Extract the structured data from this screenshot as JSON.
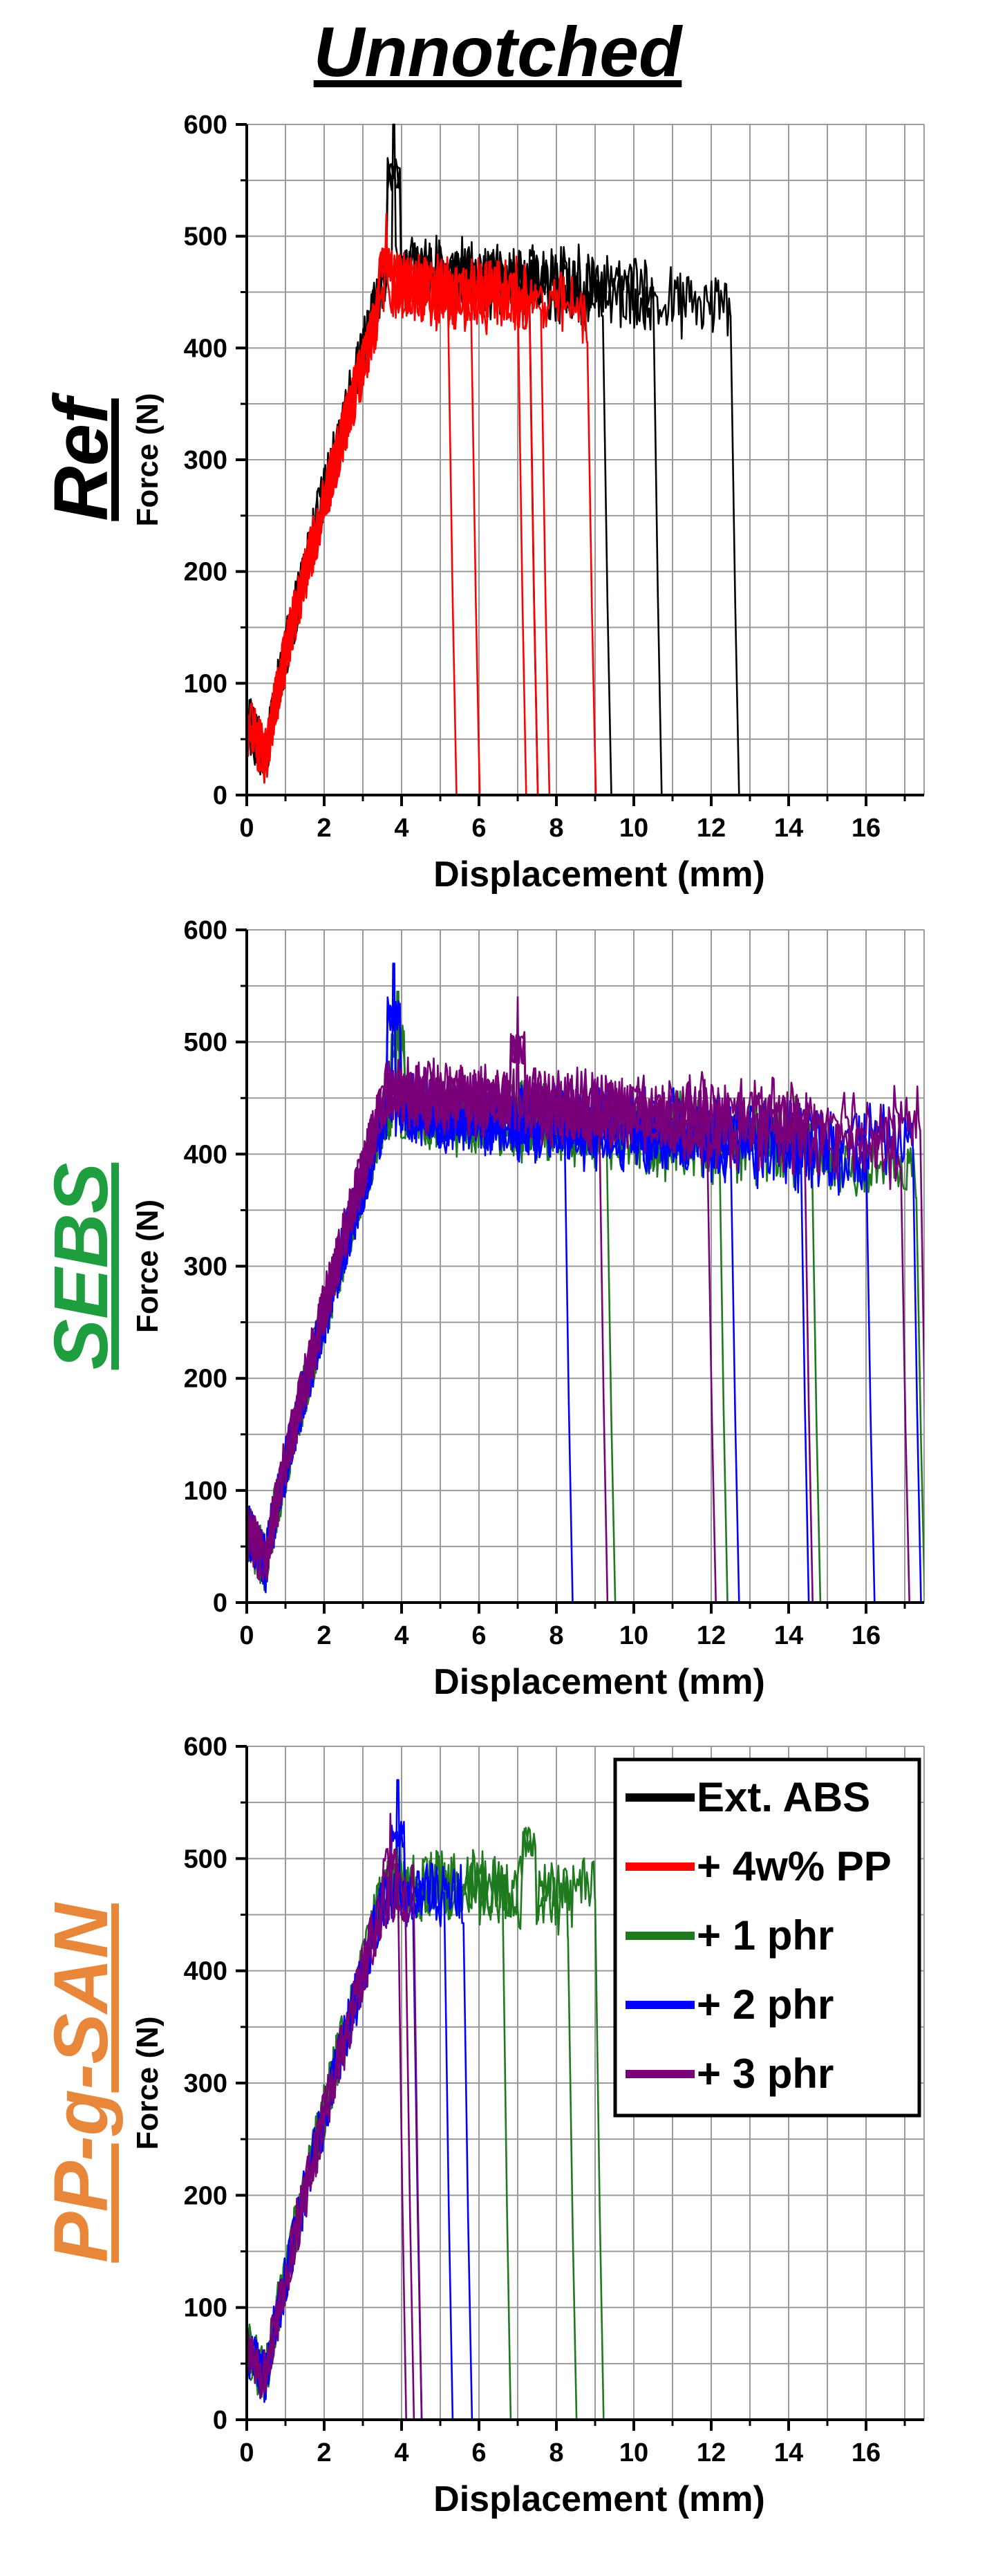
{
  "figure": {
    "title": "Unnotched"
  },
  "legend": {
    "entries": [
      {
        "label": "Ext. ABS",
        "color": "#000000"
      },
      {
        "label": "+ 4w% PP",
        "color": "#ff0000"
      },
      {
        "label": "+ 1 phr",
        "color": "#1f7a1f"
      },
      {
        "label": "+ 2 phr",
        "color": "#0000ff"
      },
      {
        "label": "+ 3 phr",
        "color": "#7a007a"
      }
    ]
  },
  "chart_data": [
    {
      "type": "line",
      "panel_label": "Ref",
      "panel_label_color": "#000000",
      "xlabel": "Displacement (mm)",
      "ylabel": "Force (N)",
      "xlim": [
        0,
        17.5
      ],
      "ylim": [
        0,
        600
      ],
      "xticks": [
        0,
        2,
        4,
        6,
        8,
        10,
        12,
        14,
        16
      ],
      "yticks": [
        0,
        100,
        200,
        300,
        400,
        500,
        600
      ],
      "grid": true,
      "series": [
        {
          "legend_ref": "Ext. ABS",
          "color": "#000000",
          "peak": 600,
          "peak_at": 3.8,
          "plateau": 470,
          "failure_x": [
            7.3,
            9.2,
            10.5,
            12.5
          ]
        },
        {
          "legend_ref": "+ 4w% PP",
          "color": "#ff0000",
          "peak": 520,
          "peak_at": 3.6,
          "plateau": 455,
          "failure_x": [
            5.2,
            5.8,
            7.0,
            7.3,
            7.6,
            8.8
          ]
        }
      ]
    },
    {
      "type": "line",
      "panel_label": "SEBS",
      "panel_label_color": "#1e9e3e",
      "xlabel": "Displacement (mm)",
      "ylabel": "Force (N)",
      "xlim": [
        0,
        17.5
      ],
      "ylim": [
        0,
        600
      ],
      "xticks": [
        0,
        2,
        4,
        6,
        8,
        10,
        12,
        14,
        16
      ],
      "yticks": [
        0,
        100,
        200,
        300,
        400,
        500,
        600
      ],
      "grid": true,
      "series": [
        {
          "legend_ref": "+ 1 phr",
          "color": "#1f7a1f",
          "peak": 545,
          "peak_at": 3.9,
          "plateau": 440,
          "failure_x": [
            9.3,
            12.2,
            14.6,
            17.3
          ]
        },
        {
          "legend_ref": "+ 2 phr",
          "color": "#0000ff",
          "peak": 570,
          "peak_at": 3.8,
          "plateau": 440,
          "failure_x": [
            8.2,
            12.5,
            14.3,
            16.0,
            17.2
          ]
        },
        {
          "legend_ref": "+ 3 phr",
          "color": "#7a007a",
          "peak": 540,
          "peak_at": 7.0,
          "plateau": 455,
          "failure_x": [
            9.1,
            11.9,
            14.4,
            16.9,
            17.4
          ]
        }
      ]
    },
    {
      "type": "line",
      "panel_label": "PP-g-SAN",
      "panel_label_color": "#e8873a",
      "xlabel": "Displacement (mm)",
      "ylabel": "Force (N)",
      "xlim": [
        0,
        17.5
      ],
      "ylim": [
        0,
        600
      ],
      "xticks": [
        0,
        2,
        4,
        6,
        8,
        10,
        12,
        14,
        16
      ],
      "yticks": [
        0,
        100,
        200,
        300,
        400,
        500,
        600
      ],
      "grid": true,
      "legend_placement": "top-right",
      "series": [
        {
          "legend_ref": "+ 1 phr",
          "color": "#1f7a1f",
          "peak": 560,
          "peak_at": 7.3,
          "plateau": 480,
          "failure_x": [
            6.6,
            8.3,
            9.0
          ]
        },
        {
          "legend_ref": "+ 2 phr",
          "color": "#0000ff",
          "peak": 570,
          "peak_at": 3.9,
          "plateau": 470,
          "failure_x": [
            4.3,
            5.1,
            5.6
          ]
        },
        {
          "legend_ref": "+ 3 phr",
          "color": "#7a007a",
          "peak": 540,
          "peak_at": 3.7,
          "plateau": 470,
          "failure_x": [
            3.9,
            4.1,
            4.3
          ]
        }
      ]
    }
  ]
}
